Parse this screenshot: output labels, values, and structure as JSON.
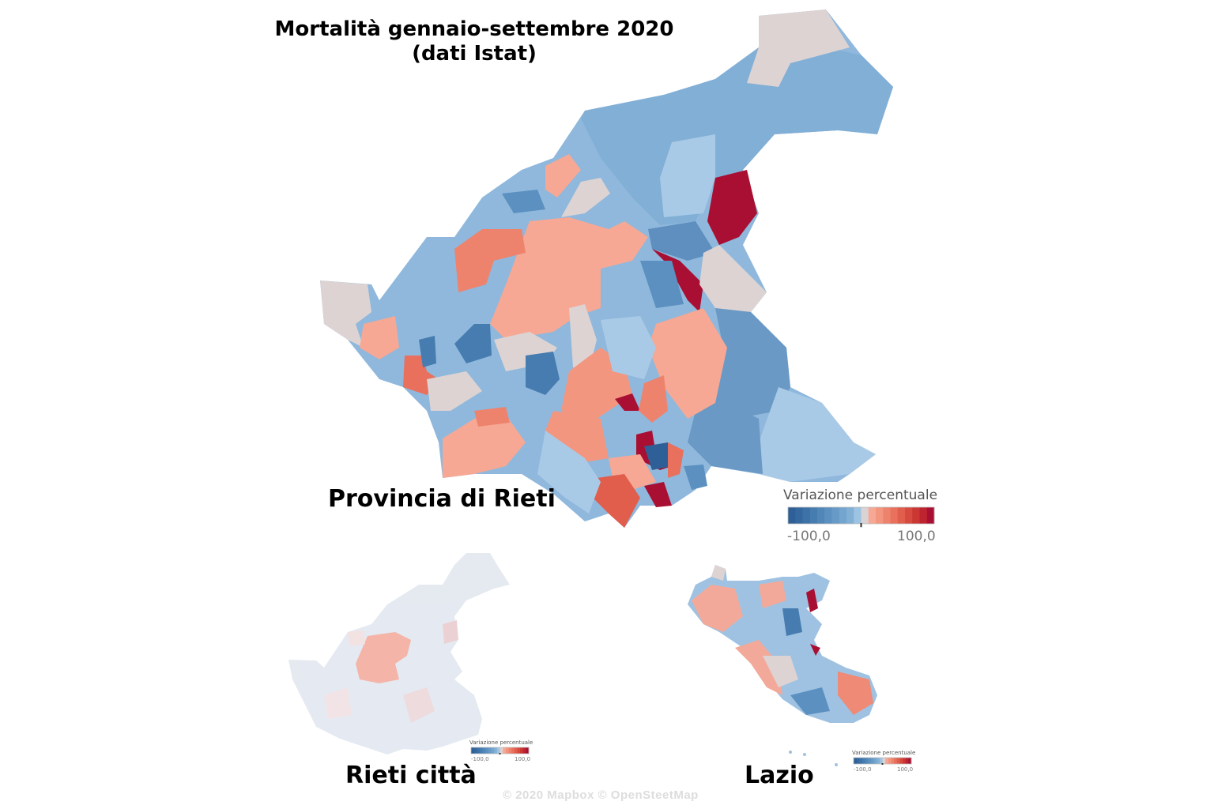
{
  "title": {
    "line1": "Mortalità gennaio-settembre 2020",
    "line2": "(dati Istat)"
  },
  "maps": [
    {
      "id": "provincia",
      "label": "Provincia di Rieti"
    },
    {
      "id": "citta",
      "label": "Rieti città"
    },
    {
      "id": "lazio",
      "label": "Lazio"
    }
  ],
  "legend": {
    "title": "Variazione percentuale",
    "min_label": "-100,0",
    "max_label": "100,0",
    "min": -100,
    "max": 100,
    "colors": [
      "#2e5f96",
      "#35689f",
      "#3d72a8",
      "#467cb0",
      "#5086b8",
      "#5b90c0",
      "#679ac7",
      "#74a5ce",
      "#82b0d5",
      "#9dc3e2",
      "#d9d3d3",
      "#f6a894",
      "#f39680",
      "#ee836d",
      "#e8705c",
      "#e15d4c",
      "#d74a3f",
      "#cb3733",
      "#bd2430",
      "#a90f32"
    ]
  },
  "copyright": "© 2020 Mapbox © OpenSteetMap"
}
